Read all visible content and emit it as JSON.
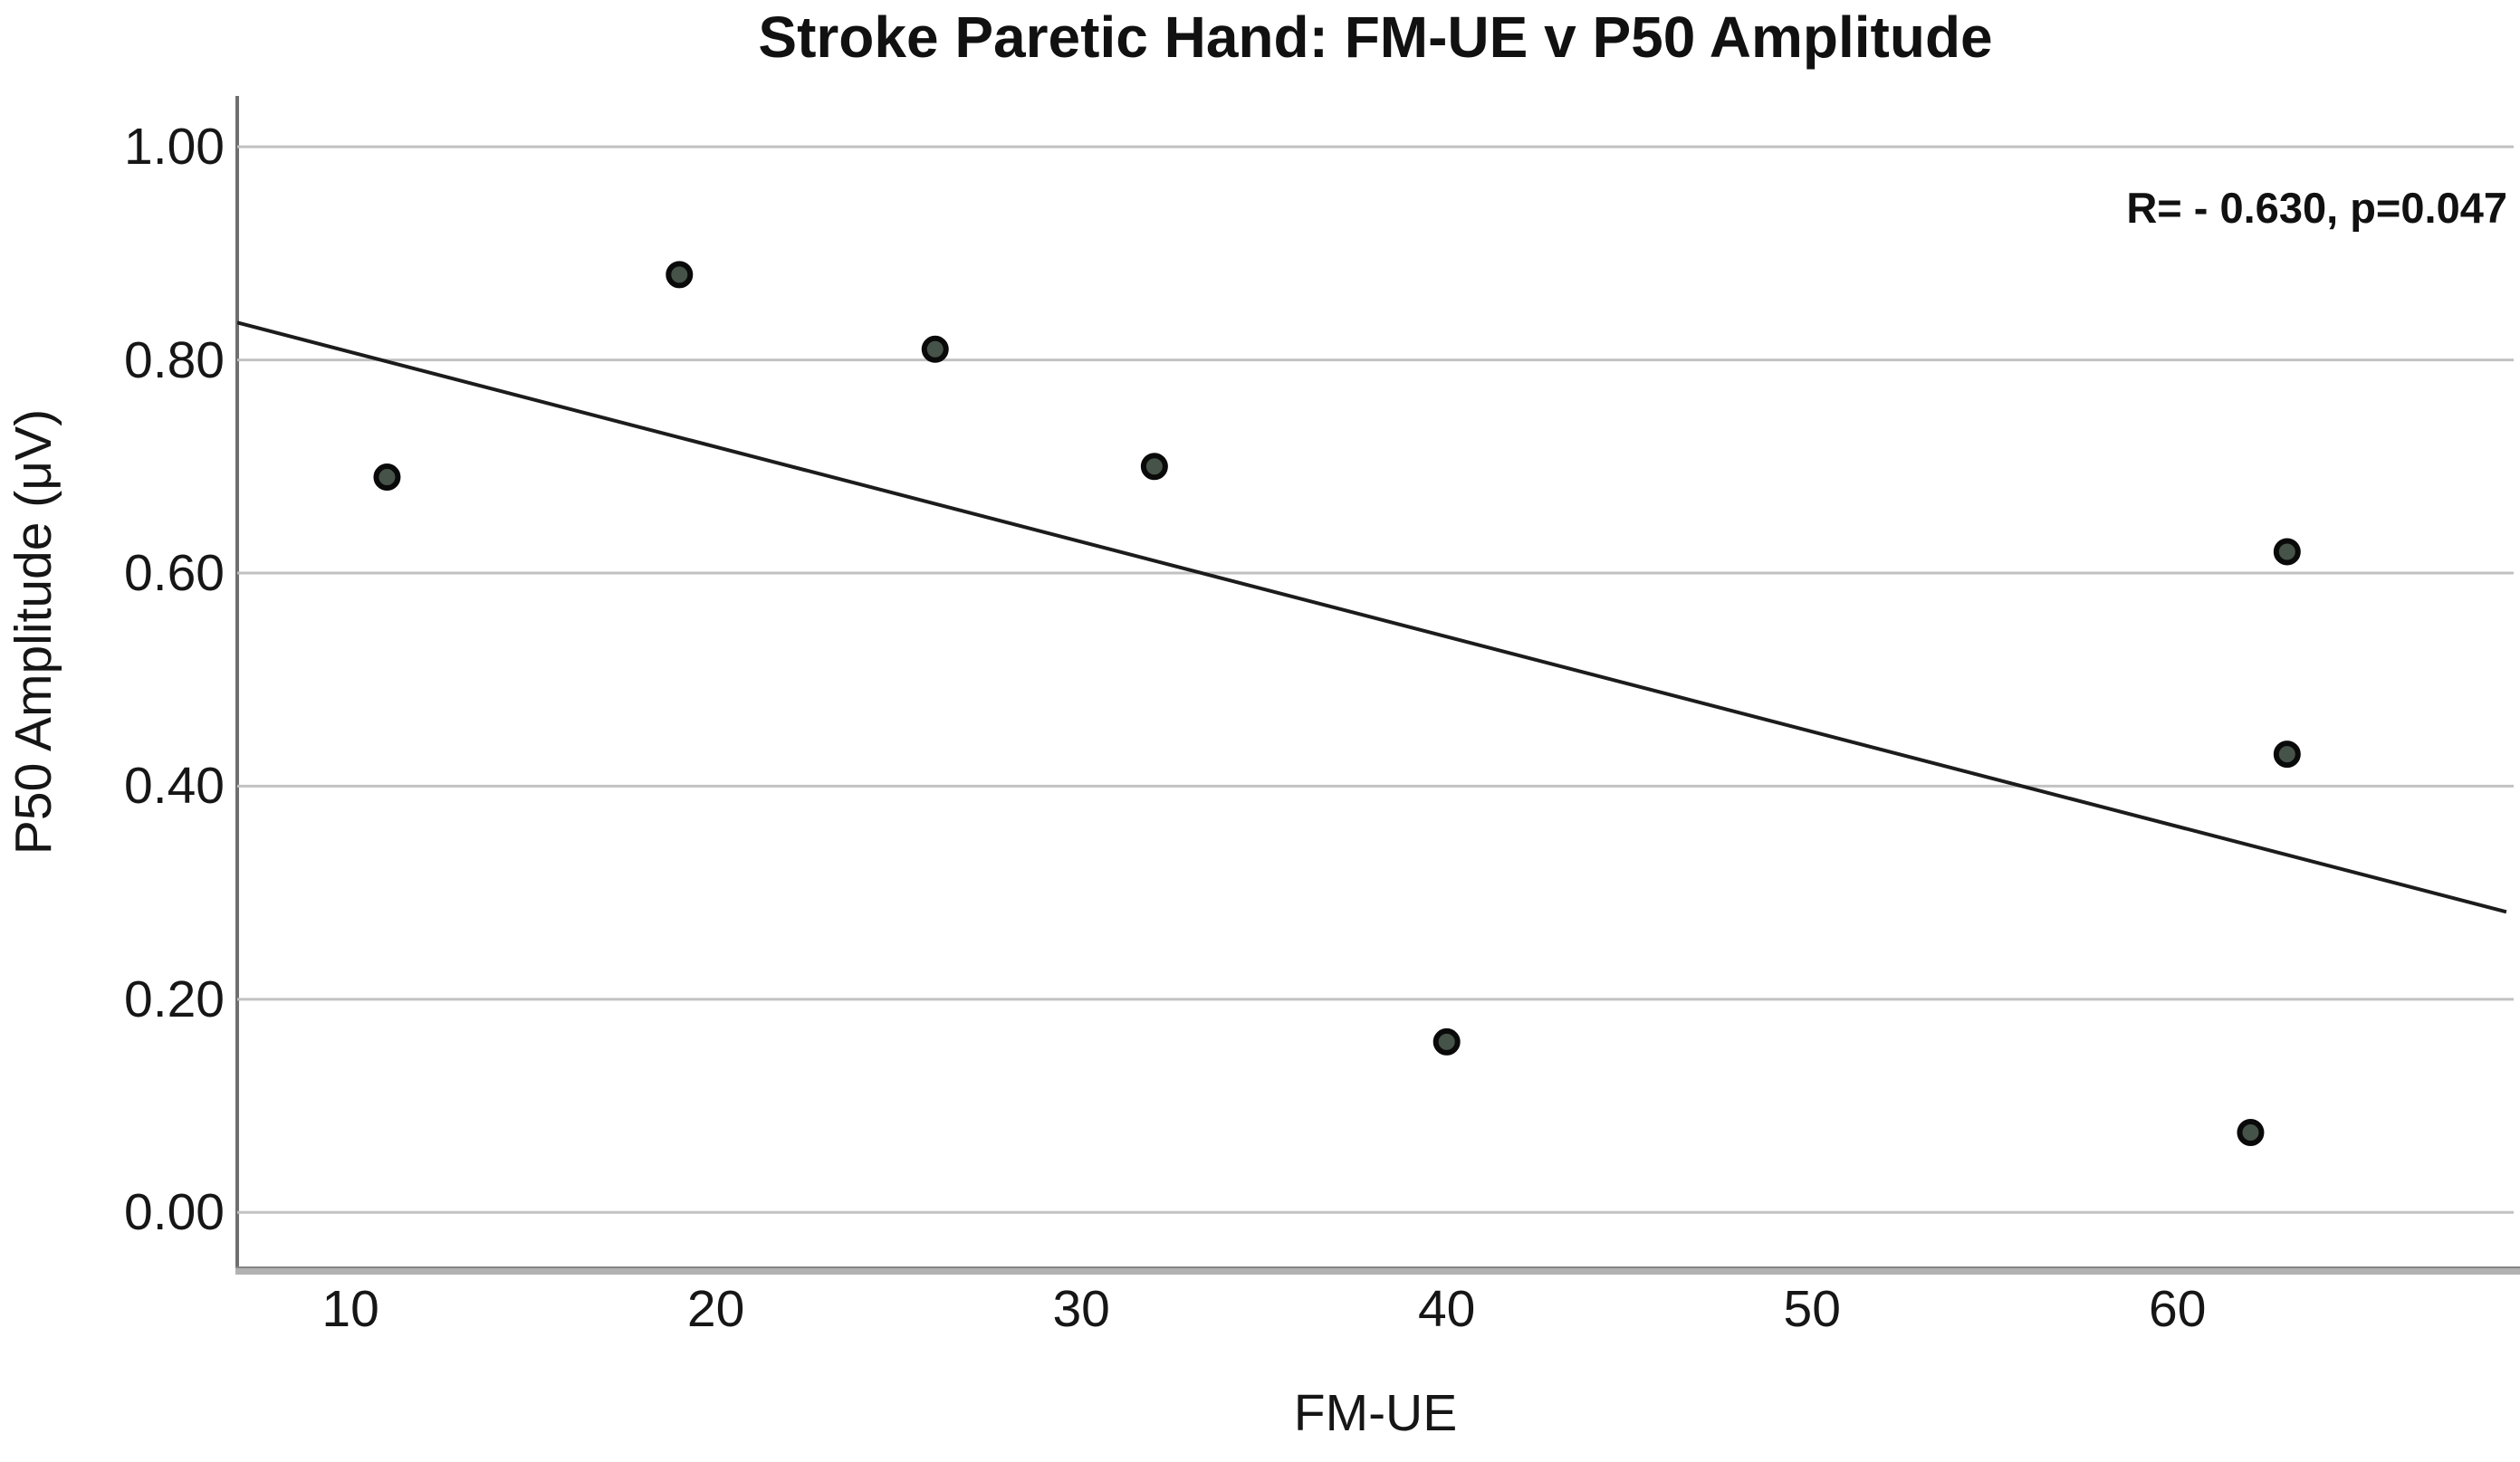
{
  "chart_data": {
    "type": "scatter",
    "title": "Stroke Paretic Hand: FM-UE v P50 Amplitude",
    "xlabel": "FM-UE",
    "ylabel": "P50 Amplitude (μV)",
    "annotation": "R= - 0.630, p=0.047",
    "x_ticks": [
      10,
      20,
      30,
      40,
      50,
      60
    ],
    "y_ticks": [
      1.0,
      0.8,
      0.6,
      0.4,
      0.2,
      0.0
    ],
    "y_tick_labels": [
      "1.00",
      "0.80",
      "0.60",
      "0.40",
      "0.20",
      "0.00"
    ],
    "xlim": [
      6.9,
      69.2
    ],
    "ylim": [
      -0.055,
      1.046
    ],
    "grid": "horizontal-only",
    "legend": "none",
    "points": [
      [
        11,
        0.69
      ],
      [
        19,
        0.88
      ],
      [
        26,
        0.81
      ],
      [
        32,
        0.7
      ],
      [
        40,
        0.16
      ],
      [
        62,
        0.075
      ],
      [
        63,
        0.43
      ],
      [
        63,
        0.62
      ]
    ],
    "trendline": {
      "x1": 6.9,
      "y1": 0.835,
      "x2": 69.0,
      "y2": 0.282
    },
    "colors": {
      "point_fill": "#465349",
      "point_stroke": "#0a0a0a",
      "trend_line": "#1c1c1c",
      "gridline": "#c2c2c2",
      "y_axis": "#6f6f6f",
      "x_axis": "#a9a9a9",
      "text": "#161616"
    }
  }
}
